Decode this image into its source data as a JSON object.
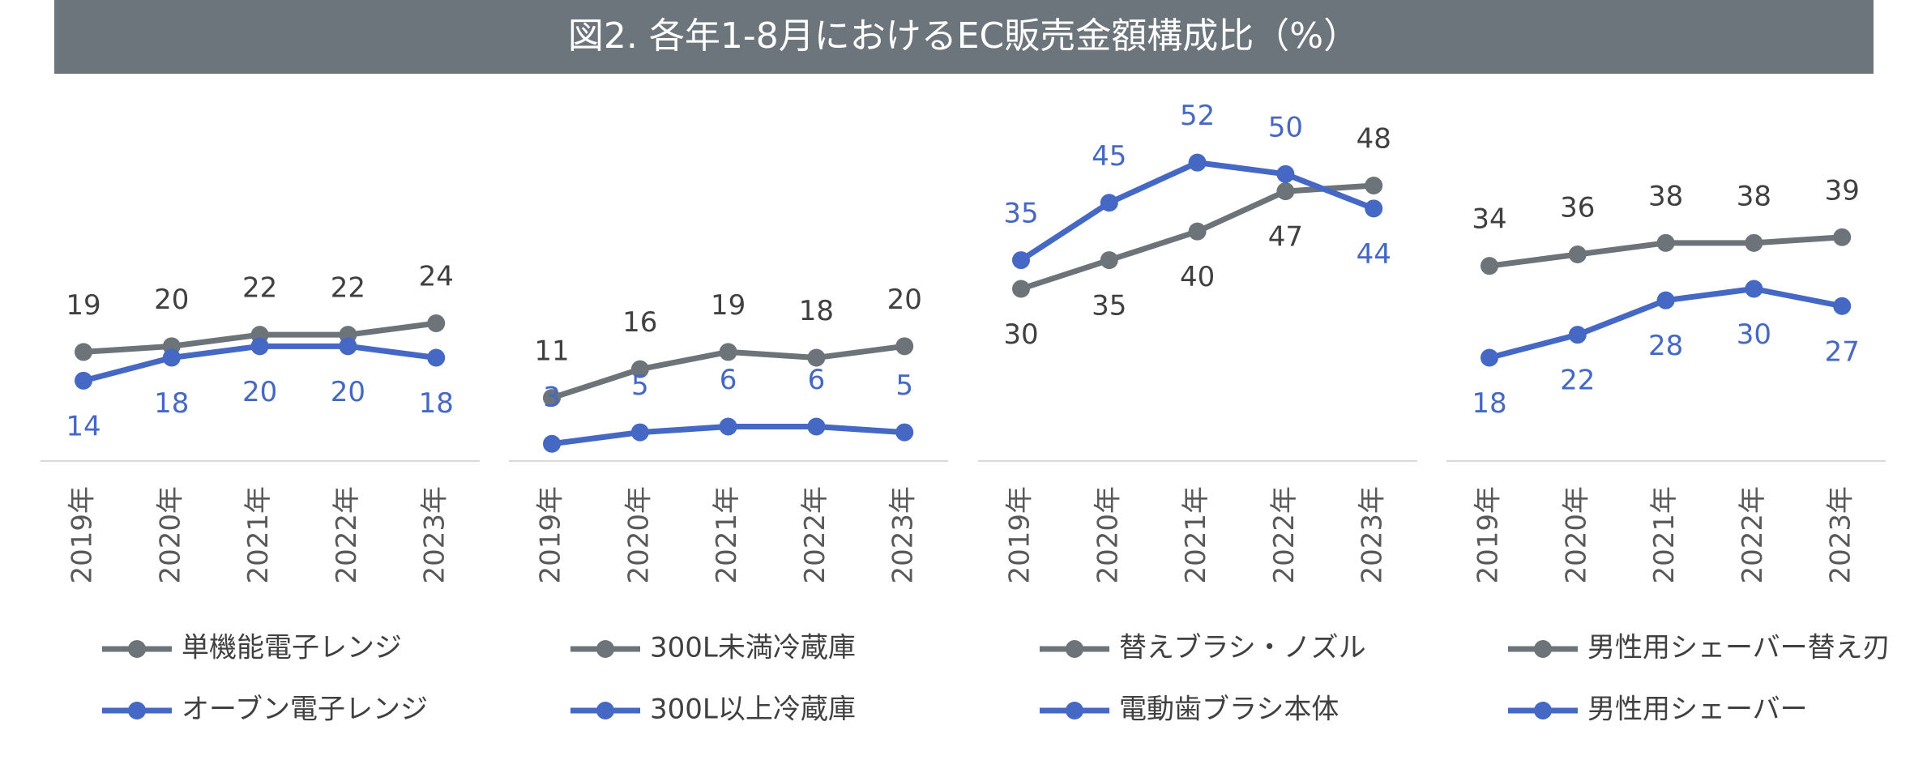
{
  "title": "図2. 各年1-8月におけるEC販売金額構成比（%）",
  "chart_data": [
    {
      "type": "line",
      "categories": [
        "2019年",
        "2020年",
        "2021年",
        "2022年",
        "2023年"
      ],
      "ylim": [
        0,
        60
      ],
      "series": [
        {
          "name": "単機能電子レンジ",
          "color": "#6d7479",
          "values": [
            19,
            20,
            22,
            22,
            24
          ]
        },
        {
          "name": "オーブン電子レンジ",
          "color": "#4468c4",
          "values": [
            14,
            18,
            20,
            20,
            18
          ]
        }
      ]
    },
    {
      "type": "line",
      "categories": [
        "2019年",
        "2020年",
        "2021年",
        "2022年",
        "2023年"
      ],
      "ylim": [
        0,
        60
      ],
      "series": [
        {
          "name": "300L未満冷蔵庫",
          "color": "#6d7479",
          "values": [
            11,
            16,
            19,
            18,
            20
          ]
        },
        {
          "name": "300L以上冷蔵庫",
          "color": "#4468c4",
          "values": [
            3,
            5,
            6,
            6,
            5
          ]
        }
      ]
    },
    {
      "type": "line",
      "categories": [
        "2019年",
        "2020年",
        "2021年",
        "2022年",
        "2023年"
      ],
      "ylim": [
        0,
        60
      ],
      "series": [
        {
          "name": "替えブラシ・ノズル",
          "color": "#6d7479",
          "values": [
            30,
            35,
            40,
            47,
            48
          ]
        },
        {
          "name": "電動歯ブラシ本体",
          "color": "#4468c4",
          "values": [
            35,
            45,
            52,
            50,
            44
          ]
        }
      ]
    },
    {
      "type": "line",
      "categories": [
        "2019年",
        "2020年",
        "2021年",
        "2022年",
        "2023年"
      ],
      "ylim": [
        0,
        60
      ],
      "series": [
        {
          "name": "男性用シェーバー替え刃",
          "color": "#6d7479",
          "values": [
            34,
            36,
            38,
            38,
            39
          ]
        },
        {
          "name": "男性用シェーバー",
          "color": "#4468c4",
          "values": [
            18,
            22,
            28,
            30,
            27
          ]
        }
      ]
    }
  ]
}
